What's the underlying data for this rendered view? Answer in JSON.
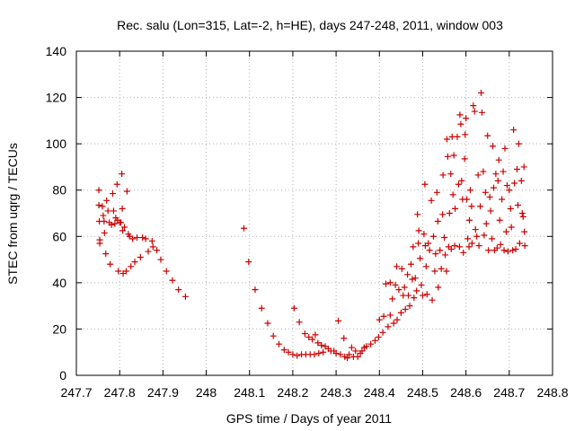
{
  "chart_data": {
    "type": "scatter",
    "title": "Rec. salu (Lon=315, Lat=-2, h=HE), days 247-248, 2011, window 003",
    "xlabel": "GPS time / Days of year 2011",
    "ylabel": "STEC from uqrg / TECUs",
    "xlim": [
      247.7,
      248.8
    ],
    "ylim": [
      0,
      140
    ],
    "xticks": [
      247.7,
      247.8,
      247.9,
      248,
      248.1,
      248.2,
      248.3,
      248.4,
      248.5,
      248.6,
      248.7,
      248.8
    ],
    "xtick_labels": [
      "247.7",
      "247.8",
      "247.9",
      "248",
      "248.1",
      "248.2",
      "248.3",
      "248.4",
      "248.5",
      "248.6",
      "248.7",
      "248.8"
    ],
    "yticks": [
      0,
      20,
      40,
      60,
      80,
      100,
      120,
      140
    ],
    "ytick_labels": [
      "0",
      "20",
      "40",
      "60",
      "80",
      "100",
      "120",
      "140"
    ],
    "grid": true,
    "marker_color": "#cc0000",
    "marker": "plus",
    "points": [
      [
        247.752,
        80
      ],
      [
        247.752,
        73.5
      ],
      [
        247.753,
        66.5
      ],
      [
        247.754,
        58.5
      ],
      [
        247.754,
        57
      ],
      [
        247.76,
        73
      ],
      [
        247.762,
        69
      ],
      [
        247.764,
        66.5
      ],
      [
        247.765,
        61.5
      ],
      [
        247.768,
        52.5
      ],
      [
        247.77,
        75.5
      ],
      [
        247.773,
        71
      ],
      [
        247.776,
        66
      ],
      [
        247.778,
        48
      ],
      [
        247.781,
        65
      ],
      [
        247.784,
        78.5
      ],
      [
        247.786,
        71
      ],
      [
        247.789,
        65.5
      ],
      [
        247.791,
        68
      ],
      [
        247.794,
        82.5
      ],
      [
        247.795,
        67
      ],
      [
        247.797,
        45
      ],
      [
        247.8,
        66
      ],
      [
        247.803,
        66
      ],
      [
        247.805,
        87
      ],
      [
        247.806,
        72
      ],
      [
        247.807,
        62.5
      ],
      [
        247.808,
        44
      ],
      [
        247.811,
        64
      ],
      [
        247.815,
        45
      ],
      [
        247.817,
        79.5
      ],
      [
        247.82,
        61
      ],
      [
        247.823,
        60
      ],
      [
        247.826,
        47
      ],
      [
        247.83,
        59
      ],
      [
        247.835,
        49
      ],
      [
        247.84,
        59.5
      ],
      [
        247.848,
        51
      ],
      [
        247.853,
        59.5
      ],
      [
        247.86,
        59
      ],
      [
        247.866,
        53.5
      ],
      [
        247.875,
        58
      ],
      [
        247.877,
        55.5
      ],
      [
        247.886,
        54
      ],
      [
        247.895,
        50
      ],
      [
        247.908,
        45
      ],
      [
        247.922,
        41
      ],
      [
        247.936,
        37
      ],
      [
        247.952,
        34
      ],
      [
        248.087,
        63.5
      ],
      [
        248.098,
        49
      ],
      [
        248.113,
        37
      ],
      [
        248.128,
        29
      ],
      [
        248.142,
        22.5
      ],
      [
        248.155,
        17
      ],
      [
        248.168,
        13.5
      ],
      [
        248.18,
        11
      ],
      [
        248.19,
        10
      ],
      [
        248.2,
        9
      ],
      [
        248.203,
        29
      ],
      [
        248.21,
        8.5
      ],
      [
        248.215,
        23
      ],
      [
        248.22,
        9
      ],
      [
        248.228,
        18
      ],
      [
        248.23,
        9
      ],
      [
        248.237,
        16.5
      ],
      [
        248.24,
        9
      ],
      [
        248.245,
        15.5
      ],
      [
        248.25,
        9
      ],
      [
        248.252,
        17.5
      ],
      [
        248.258,
        14
      ],
      [
        248.26,
        9.5
      ],
      [
        248.266,
        13
      ],
      [
        248.27,
        10
      ],
      [
        248.275,
        12.5
      ],
      [
        248.282,
        11.5
      ],
      [
        248.288,
        10.5
      ],
      [
        248.295,
        10.5
      ],
      [
        248.3,
        9.5
      ],
      [
        248.305,
        23.5
      ],
      [
        248.31,
        9
      ],
      [
        248.318,
        16
      ],
      [
        248.32,
        8
      ],
      [
        248.326,
        7.5
      ],
      [
        248.33,
        9
      ],
      [
        248.336,
        12
      ],
      [
        248.34,
        8
      ],
      [
        248.345,
        10.5
      ],
      [
        248.35,
        8
      ],
      [
        248.356,
        9.5
      ],
      [
        248.36,
        10.5
      ],
      [
        248.365,
        12
      ],
      [
        248.37,
        12.5
      ],
      [
        248.38,
        13.5
      ],
      [
        248.39,
        15
      ],
      [
        248.398,
        16.5
      ],
      [
        248.4,
        24
      ],
      [
        248.408,
        18.5
      ],
      [
        248.41,
        25.5
      ],
      [
        248.415,
        39.5
      ],
      [
        248.42,
        21
      ],
      [
        248.425,
        40
      ],
      [
        248.425,
        26
      ],
      [
        248.43,
        33
      ],
      [
        248.433,
        22.5
      ],
      [
        248.437,
        39
      ],
      [
        248.44,
        47
      ],
      [
        248.441,
        24
      ],
      [
        248.445,
        37
      ],
      [
        248.45,
        27
      ],
      [
        248.452,
        46
      ],
      [
        248.455,
        34.5
      ],
      [
        248.458,
        38
      ],
      [
        248.46,
        28.5
      ],
      [
        248.465,
        43.5
      ],
      [
        248.467,
        34.5
      ],
      [
        248.47,
        30
      ],
      [
        248.473,
        48
      ],
      [
        248.476,
        41.5
      ],
      [
        248.478,
        55.5
      ],
      [
        248.48,
        33.5
      ],
      [
        248.483,
        42
      ],
      [
        248.486,
        36.5
      ],
      [
        248.488,
        69.5
      ],
      [
        248.49,
        57
      ],
      [
        248.491,
        62.5
      ],
      [
        248.494,
        50.5
      ],
      [
        248.497,
        39
      ],
      [
        248.5,
        34.5
      ],
      [
        248.503,
        61
      ],
      [
        248.505,
        82.5
      ],
      [
        248.506,
        56
      ],
      [
        248.508,
        47
      ],
      [
        248.51,
        35
      ],
      [
        248.513,
        57
      ],
      [
        248.516,
        54
      ],
      [
        248.52,
        75.5
      ],
      [
        248.522,
        32.5
      ],
      [
        248.525,
        60
      ],
      [
        248.528,
        45
      ],
      [
        248.53,
        52.5
      ],
      [
        248.533,
        79
      ],
      [
        248.535,
        66.5
      ],
      [
        248.536,
        38
      ],
      [
        248.54,
        54
      ],
      [
        248.543,
        46
      ],
      [
        248.546,
        69.5
      ],
      [
        248.547,
        86.5
      ],
      [
        248.55,
        59.5
      ],
      [
        248.552,
        52
      ],
      [
        248.555,
        45
      ],
      [
        248.556,
        102
      ],
      [
        248.558,
        94.5
      ],
      [
        248.56,
        55.5
      ],
      [
        248.562,
        70
      ],
      [
        248.565,
        87
      ],
      [
        248.566,
        54.5
      ],
      [
        248.568,
        103
      ],
      [
        248.57,
        78
      ],
      [
        248.572,
        95
      ],
      [
        248.574,
        56
      ],
      [
        248.575,
        72
      ],
      [
        248.58,
        103
      ],
      [
        248.583,
        82.5
      ],
      [
        248.585,
        55.5
      ],
      [
        248.586,
        112.5
      ],
      [
        248.588,
        108.5
      ],
      [
        248.59,
        84
      ],
      [
        248.592,
        76
      ],
      [
        248.594,
        53
      ],
      [
        248.597,
        93.5
      ],
      [
        248.598,
        104
      ],
      [
        248.6,
        111
      ],
      [
        248.602,
        76
      ],
      [
        248.604,
        59
      ],
      [
        248.607,
        55.5
      ],
      [
        248.608,
        67
      ],
      [
        248.61,
        80
      ],
      [
        248.613,
        73
      ],
      [
        248.614,
        57
      ],
      [
        248.617,
        116.5
      ],
      [
        248.62,
        114
      ],
      [
        248.622,
        63
      ],
      [
        248.625,
        60
      ],
      [
        248.628,
        86.5
      ],
      [
        248.63,
        56
      ],
      [
        248.633,
        73
      ],
      [
        248.635,
        122
      ],
      [
        248.637,
        113.5
      ],
      [
        248.64,
        88
      ],
      [
        248.642,
        60.5
      ],
      [
        248.645,
        79
      ],
      [
        248.647,
        65.5
      ],
      [
        248.65,
        103.5
      ],
      [
        248.652,
        54
      ],
      [
        248.655,
        77
      ],
      [
        248.657,
        71
      ],
      [
        248.66,
        59
      ],
      [
        248.662,
        99
      ],
      [
        248.664,
        81
      ],
      [
        248.666,
        54
      ],
      [
        248.669,
        87
      ],
      [
        248.672,
        55
      ],
      [
        248.674,
        84
      ],
      [
        248.676,
        93
      ],
      [
        248.678,
        67
      ],
      [
        248.68,
        56.5
      ],
      [
        248.683,
        76
      ],
      [
        248.686,
        88
      ],
      [
        248.688,
        54
      ],
      [
        248.69,
        98
      ],
      [
        248.693,
        62
      ],
      [
        248.695,
        82
      ],
      [
        248.697,
        53.5
      ],
      [
        248.7,
        80
      ],
      [
        248.703,
        72
      ],
      [
        248.705,
        64
      ],
      [
        248.708,
        54
      ],
      [
        248.71,
        106
      ],
      [
        248.712,
        83
      ],
      [
        248.715,
        54.5
      ],
      [
        248.718,
        89
      ],
      [
        248.72,
        73.5
      ],
      [
        248.722,
        100
      ],
      [
        248.724,
        57
      ],
      [
        248.728,
        84
      ],
      [
        248.73,
        70
      ],
      [
        248.732,
        68.5
      ],
      [
        248.734,
        90
      ],
      [
        248.735,
        62
      ],
      [
        248.736,
        56
      ]
    ]
  }
}
